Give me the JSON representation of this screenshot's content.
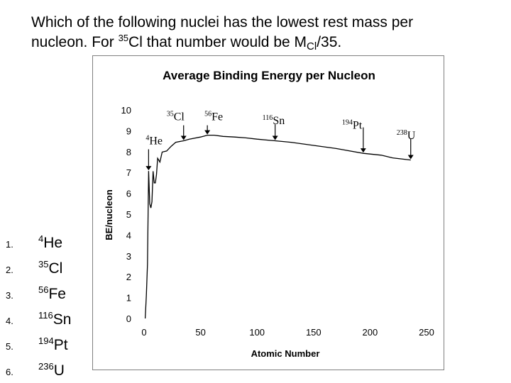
{
  "question": {
    "line1": "Which of the following nuclei has the lowest rest mass per",
    "line2_a": "nucleon.  For ",
    "line2_sup": "35",
    "line2_b": "Cl that number would be M",
    "line2_sub": "Cl",
    "line2_c": "/35."
  },
  "options": [
    {
      "num": "1.",
      "sup": "4",
      "sym": "He"
    },
    {
      "num": "2.",
      "sup": "35",
      "sym": "Cl"
    },
    {
      "num": "3.",
      "sup": "56",
      "sym": "Fe"
    },
    {
      "num": "4.",
      "sup": "116",
      "sym": "Sn"
    },
    {
      "num": "5.",
      "sup": "194",
      "sym": "Pt"
    },
    {
      "num": "6.",
      "sup": "236",
      "sym": "U"
    }
  ],
  "chart_data": {
    "type": "line",
    "title": "Average Binding Energy per Nucleon",
    "xlabel": "Atomic Number",
    "ylabel": "BE/nucleon",
    "xlim": [
      0,
      250
    ],
    "ylim": [
      0,
      10
    ],
    "xticks": [
      "0",
      "50",
      "100",
      "150",
      "200",
      "250"
    ],
    "yticks": [
      "0",
      "1",
      "2",
      "3",
      "4",
      "5",
      "6",
      "7",
      "8",
      "9",
      "10"
    ],
    "grid": false,
    "legend": "none",
    "line_color": "#000000",
    "series": [
      {
        "x": [
          1,
          2,
          3,
          4,
          5,
          6,
          7,
          8,
          9,
          10,
          11,
          12,
          14,
          16,
          20,
          24,
          28,
          35,
          40,
          50,
          56,
          62,
          70,
          80,
          90,
          100,
          116,
          130,
          150,
          170,
          194,
          210,
          220,
          236
        ],
        "y": [
          0,
          1.1,
          2.6,
          7.07,
          5.5,
          5.3,
          5.6,
          7.06,
          6.5,
          6.5,
          6.9,
          7.68,
          7.5,
          7.98,
          8.03,
          8.26,
          8.45,
          8.52,
          8.6,
          8.7,
          8.79,
          8.79,
          8.73,
          8.7,
          8.66,
          8.6,
          8.52,
          8.45,
          8.3,
          8.15,
          7.92,
          7.83,
          7.7,
          7.6
        ]
      }
    ],
    "annotations": [
      {
        "sup": "4",
        "sym": "He",
        "x": 4,
        "y": 7.07
      },
      {
        "sup": "35",
        "sym": "Cl",
        "x": 35,
        "y": 8.52
      },
      {
        "sup": "56",
        "sym": "Fe",
        "x": 56,
        "y": 8.79
      },
      {
        "sup": "116",
        "sym": "Sn",
        "x": 116,
        "y": 8.52
      },
      {
        "sup": "194",
        "sym": "Pt",
        "x": 194,
        "y": 7.92
      },
      {
        "sup": "238",
        "sym": "U",
        "x": 236,
        "y": 7.6
      }
    ]
  }
}
